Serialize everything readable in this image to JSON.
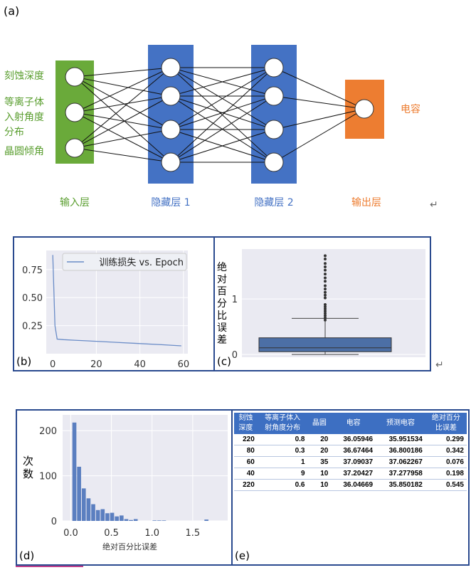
{
  "panel_a": {
    "label": "(a)",
    "inputs": [
      "刻蚀深度",
      "等离子体",
      "入射角度",
      "分布",
      "晶圆倾角"
    ],
    "output": "电容",
    "layers": [
      "输入层",
      "隐藏层 1",
      "隐藏层 2",
      "输出层"
    ],
    "layer_sizes": [
      3,
      4,
      4,
      1
    ],
    "colors": {
      "input": "#6aaa3a",
      "hidden": "#4472c4",
      "output": "#ed7d31",
      "input_text": "#5a9e2f",
      "hidden_text": "#4472c4",
      "output_text": "#ed7d31"
    },
    "return_mark": "↵"
  },
  "chart_data": [
    {
      "type": "line",
      "panel_label": "(b)",
      "legend": "训练损失 vs. Epoch",
      "legend_placement": "top-right",
      "x": [
        0,
        1,
        2,
        5,
        10,
        20,
        30,
        40,
        50,
        59
      ],
      "series": [
        {
          "name": "训练损失 vs. Epoch",
          "values": [
            0.88,
            0.25,
            0.13,
            0.125,
            0.12,
            0.11,
            0.1,
            0.09,
            0.08,
            0.07
          ]
        }
      ],
      "xticks": [
        "0",
        "20",
        "40",
        "60"
      ],
      "yticks": [
        "0.25",
        "0.50",
        "0.75"
      ],
      "xlim": [
        -3,
        62
      ],
      "ylim": [
        0.0,
        0.92
      ],
      "grid": true,
      "color": "#6a8cc7"
    },
    {
      "type": "box",
      "panel_label": "(c)",
      "ylabel": "绝对百分比误差",
      "yticks": [
        "0",
        "1"
      ],
      "ylim": [
        -0.05,
        1.9
      ],
      "box": {
        "whisker_low": 0.0,
        "q1": 0.05,
        "median": 0.12,
        "q3": 0.3,
        "whisker_high": 0.65
      },
      "outliers": [
        0.62,
        0.66,
        0.7,
        0.74,
        0.78,
        0.82,
        0.86,
        0.9,
        1.02,
        1.07,
        1.12,
        1.18,
        1.24,
        1.32,
        1.38,
        1.45,
        1.52,
        1.58,
        1.64,
        1.72,
        1.78
      ],
      "grid": true,
      "color": "#4c6fa6"
    },
    {
      "type": "bar",
      "panel_label": "(d)",
      "xlabel": "绝对百分比误差",
      "ylabel": "次数",
      "xticks": [
        "0.0",
        "0.5",
        "1.0",
        "1.5"
      ],
      "yticks": [
        "0",
        "100",
        "200"
      ],
      "xlim": [
        -0.1,
        1.93
      ],
      "ylim": [
        0,
        235
      ],
      "bin_width": 0.058,
      "bin_starts": [
        0.02,
        0.078,
        0.136,
        0.194,
        0.252,
        0.31,
        0.368,
        0.426,
        0.484,
        0.542,
        0.6,
        0.658,
        0.716,
        0.774,
        0.832,
        0.89,
        0.948,
        1.006,
        1.064,
        1.122,
        1.18,
        1.238,
        1.296,
        1.354,
        1.412,
        1.47,
        1.528,
        1.586,
        1.644,
        1.702
      ],
      "values": [
        218,
        120,
        72,
        50,
        37,
        24,
        26,
        17,
        18,
        10,
        12,
        4,
        2,
        4,
        0,
        0,
        0,
        1,
        1,
        1,
        0,
        0,
        0,
        0,
        0,
        0,
        0,
        0,
        3,
        0
      ],
      "grid": true,
      "color": "#5b7fc0"
    }
  ],
  "panel_e": {
    "label": "(e)",
    "headers": [
      [
        "刻蚀",
        "深度"
      ],
      [
        "等离子体入",
        "射角度分布"
      ],
      [
        "晶圆",
        ""
      ],
      [
        "电容",
        ""
      ],
      [
        "预测电容",
        ""
      ],
      [
        "绝对百分",
        "比误差"
      ]
    ],
    "rows": [
      [
        "220",
        "0.8",
        "20",
        "36.05946",
        "35.951534",
        "0.299"
      ],
      [
        "80",
        "0.3",
        "20",
        "36.67464",
        "36.800186",
        "0.342"
      ],
      [
        "60",
        "1",
        "35",
        "37.09037",
        "37.062267",
        "0.076"
      ],
      [
        "40",
        "9",
        "10",
        "37.20427",
        "37.277958",
        "0.198"
      ],
      [
        "220",
        "0.6",
        "10",
        "36.04669",
        "35.850182",
        "0.545"
      ]
    ]
  }
}
